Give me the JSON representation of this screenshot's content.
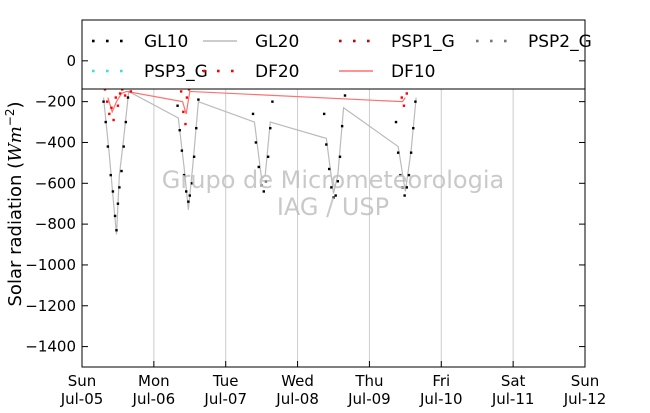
{
  "chart_data": {
    "type": "scatter",
    "ylabel": "Solar radiation ($Wm^{-2}$)",
    "ylabel_main": "Solar radiation (",
    "ylabel_unit": "Wm",
    "ylabel_exp": "−2",
    "ylabel_close": ")",
    "ylim": [
      -1500,
      200
    ],
    "yticks": [
      0,
      -200,
      -400,
      -600,
      -800,
      -1000,
      -1200,
      -1400
    ],
    "xlim_days": [
      0,
      7
    ],
    "xtick_days": [
      "Sun",
      "Mon",
      "Tue",
      "Wed",
      "Thu",
      "Fri",
      "Sat",
      "Sun"
    ],
    "xtick_dates": [
      "Jul-05",
      "Jul-06",
      "Jul-07",
      "Jul-08",
      "Jul-09",
      "Jul-10",
      "Jul-11",
      "Jul-12"
    ],
    "grid": "vertical",
    "legend": {
      "placement": "top",
      "columns": 4,
      "entries": [
        {
          "name": "GL10",
          "color": "#000000",
          "style": "dots"
        },
        {
          "name": "GL20",
          "color": "#bbbbbb",
          "style": "line"
        },
        {
          "name": "PSP1_G",
          "color": "#cc0000",
          "style": "dots"
        },
        {
          "name": "PSP2_G",
          "color": "#777777",
          "style": "dots"
        },
        {
          "name": "PSP3_G",
          "color": "#40e0d0",
          "style": "dots"
        },
        {
          "name": "DF20",
          "color": "#ff0000",
          "style": "dots"
        },
        {
          "name": "DF10",
          "color": "#ff7070",
          "style": "line"
        }
      ]
    },
    "watermark": [
      "Grupo de Micrometeorologia",
      "IAG / USP"
    ],
    "series": [
      {
        "name": "GL10",
        "color": "#000000",
        "points": [
          [
            0.27,
            -110
          ],
          [
            0.3,
            -200
          ],
          [
            0.33,
            -300
          ],
          [
            0.36,
            -420
          ],
          [
            0.4,
            -560
          ],
          [
            0.43,
            -640
          ],
          [
            0.46,
            -760
          ],
          [
            0.48,
            -830
          ],
          [
            0.5,
            -700
          ],
          [
            0.52,
            -620
          ],
          [
            0.55,
            -540
          ],
          [
            0.58,
            -420
          ],
          [
            0.61,
            -300
          ],
          [
            0.64,
            -180
          ],
          [
            0.67,
            -100
          ],
          [
            1.3,
            -110
          ],
          [
            1.33,
            -220
          ],
          [
            1.36,
            -340
          ],
          [
            1.39,
            -440
          ],
          [
            1.42,
            -560
          ],
          [
            1.45,
            -640
          ],
          [
            1.48,
            -690
          ],
          [
            1.5,
            -660
          ],
          [
            1.53,
            -600
          ],
          [
            1.56,
            -470
          ],
          [
            1.59,
            -330
          ],
          [
            1.62,
            -190
          ],
          [
            1.64,
            -110
          ],
          [
            2.34,
            -110
          ],
          [
            2.38,
            -260
          ],
          [
            2.42,
            -400
          ],
          [
            2.46,
            -520
          ],
          [
            2.5,
            -610
          ],
          [
            2.53,
            -640
          ],
          [
            2.56,
            -590
          ],
          [
            2.59,
            -470
          ],
          [
            2.62,
            -330
          ],
          [
            2.65,
            -200
          ],
          [
            2.68,
            -100
          ],
          [
            3.33,
            -100
          ],
          [
            3.37,
            -260
          ],
          [
            3.4,
            -410
          ],
          [
            3.44,
            -530
          ],
          [
            3.47,
            -620
          ],
          [
            3.5,
            -670
          ],
          [
            3.53,
            -660
          ],
          [
            3.56,
            -590
          ],
          [
            3.59,
            -470
          ],
          [
            3.62,
            -320
          ],
          [
            3.66,
            -170
          ],
          [
            3.69,
            -100
          ],
          [
            4.33,
            -130
          ],
          [
            4.37,
            -300
          ],
          [
            4.4,
            -450
          ],
          [
            4.43,
            -560
          ],
          [
            4.46,
            -620
          ],
          [
            4.49,
            -660
          ],
          [
            4.52,
            -620
          ],
          [
            4.55,
            -560
          ],
          [
            4.58,
            -450
          ],
          [
            4.61,
            -330
          ],
          [
            4.64,
            -200
          ],
          [
            4.67,
            -110
          ]
        ]
      },
      {
        "name": "GL20",
        "color": "#bbbbbb",
        "points": [
          [
            0.3,
            -180
          ],
          [
            0.38,
            -460
          ],
          [
            0.44,
            -700
          ],
          [
            0.48,
            -850
          ],
          [
            0.52,
            -560
          ],
          [
            0.58,
            -380
          ],
          [
            0.65,
            -150
          ],
          [
            1.34,
            -280
          ],
          [
            1.42,
            -520
          ],
          [
            1.48,
            -730
          ],
          [
            1.54,
            -520
          ],
          [
            1.62,
            -200
          ],
          [
            2.4,
            -300
          ],
          [
            2.5,
            -580
          ],
          [
            2.55,
            -560
          ],
          [
            2.62,
            -300
          ],
          [
            3.4,
            -380
          ],
          [
            3.5,
            -650
          ],
          [
            3.56,
            -560
          ],
          [
            3.64,
            -230
          ],
          [
            4.4,
            -420
          ],
          [
            4.5,
            -640
          ],
          [
            4.58,
            -440
          ],
          [
            4.65,
            -180
          ]
        ]
      },
      {
        "name": "DF20",
        "color": "#ff0000",
        "points": [
          [
            0.32,
            -140
          ],
          [
            0.35,
            -200
          ],
          [
            0.38,
            -260
          ],
          [
            0.41,
            -230
          ],
          [
            0.44,
            -290
          ],
          [
            0.47,
            -180
          ],
          [
            0.5,
            -220
          ],
          [
            0.53,
            -160
          ],
          [
            0.56,
            -140
          ],
          [
            0.6,
            -170
          ],
          [
            0.64,
            -130
          ],
          [
            0.68,
            -150
          ],
          [
            1.38,
            -150
          ],
          [
            1.41,
            -250
          ],
          [
            1.44,
            -310
          ],
          [
            1.46,
            -180
          ],
          [
            1.49,
            -140
          ],
          [
            4.45,
            -180
          ],
          [
            4.48,
            -220
          ],
          [
            4.52,
            -160
          ]
        ]
      },
      {
        "name": "DF10",
        "color": "#ff7070",
        "points": [
          [
            0.36,
            -180
          ],
          [
            0.42,
            -250
          ],
          [
            0.48,
            -200
          ],
          [
            0.55,
            -160
          ],
          [
            0.62,
            -150
          ],
          [
            1.4,
            -200
          ],
          [
            1.45,
            -260
          ],
          [
            1.5,
            -150
          ],
          [
            4.46,
            -200
          ],
          [
            4.5,
            -180
          ]
        ]
      }
    ]
  }
}
